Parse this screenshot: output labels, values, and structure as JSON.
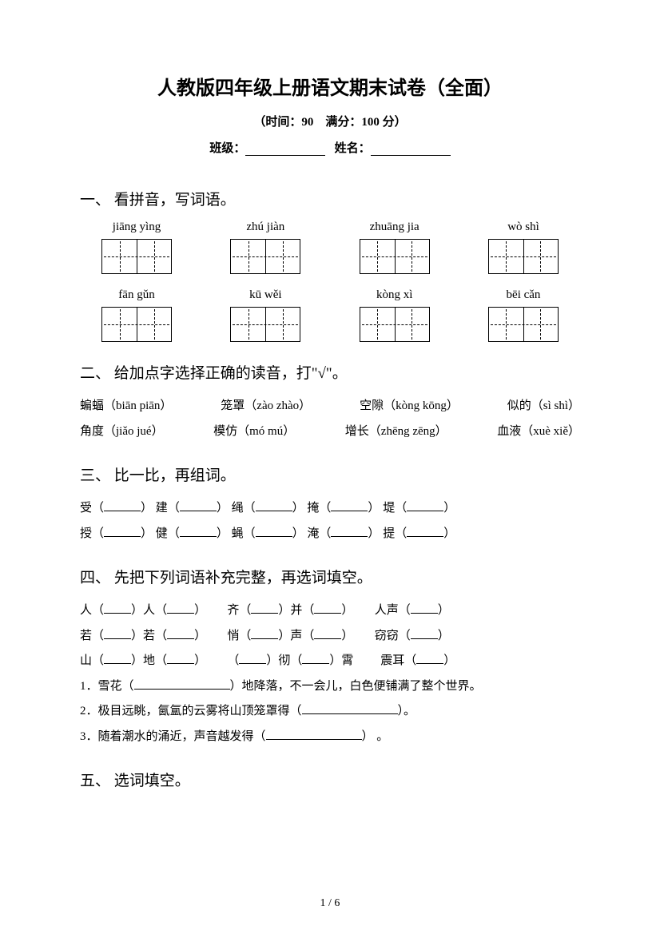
{
  "title": "人教版四年级上册语文期末试卷（全面）",
  "subtitle": "（时间：90　满分：100 分）",
  "label_class": "班级：",
  "label_name": "姓名：",
  "sections": {
    "s1": {
      "heading": "一、 看拼音，写词语。",
      "row1": [
        "jiāng yìng",
        "zhú jiàn",
        "zhuāng jia",
        "wò shì"
      ],
      "row2": [
        "fān gǔn",
        "kū wěi",
        "kòng xì",
        "bēi cǎn"
      ]
    },
    "s2": {
      "heading": "二、 给加点字选择正确的读音，打\"√\"。",
      "line1": {
        "a": "蝙蝠（biān piān）",
        "b": "笼罩（zào zhào）",
        "c": "空隙（kòng kōng）",
        "d": "似的（sì shì）"
      },
      "line2": {
        "a": "角度（jiǎo jué）",
        "b": "模仿（mó mú）",
        "c": "增长（zhēng zēng）",
        "d": "血液（xuè xiě）"
      }
    },
    "s3": {
      "heading": "三、 比一比，再组词。",
      "row1": [
        "受",
        "建",
        "绳",
        "掩",
        "堤"
      ],
      "row2": [
        "授",
        "健",
        "蝇",
        "淹",
        "提"
      ]
    },
    "s4": {
      "heading": "四、 先把下列词语补充完整，再选词填空。",
      "words": {
        "w1a": "人",
        "w1b": "人",
        "w2a": "齐",
        "w2b": "并",
        "w3": "人声",
        "w4a": "若",
        "w4b": "若",
        "w5a": "悄",
        "w5b": "声",
        "w6": "窃窃",
        "w7a": "山",
        "w7b": "地",
        "w8a": "彻",
        "w8b": "霄",
        "w9": "震耳"
      },
      "sen1a": "1．雪花（",
      "sen1b": "）地降落，不一会儿，白色便铺满了整个世界。",
      "sen2a": "2．极目远眺，氤氲的云雾将山顶笼罩得（",
      "sen2b": "）。",
      "sen3a": "3．随着潮水的涌近，声音越发得（",
      "sen3b": "） 。"
    },
    "s5": {
      "heading": "五、 选词填空。"
    }
  },
  "page_num": "1 / 6"
}
